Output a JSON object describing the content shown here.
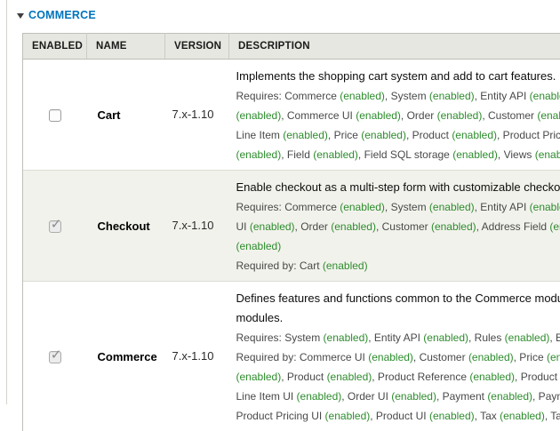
{
  "colors": {
    "section_title_blue": "#0074BD",
    "enabled_green": "#2d8c2d"
  },
  "section": {
    "title": "COMMERCE",
    "collapse_icon": "triangle-down-icon",
    "state": "expanded"
  },
  "table": {
    "headers": [
      "ENABLED",
      "NAME",
      "VERSION",
      "DESCRIPTION"
    ],
    "rows": [
      {
        "enabled": false,
        "checkbox_disabled": false,
        "name": "Cart",
        "version": "7.x-1.10",
        "description_lines": [
          {
            "style": "main",
            "text": "Implements the shopping cart system and add to cart features."
          },
          {
            "style": "requirements",
            "text": "Requires: Commerce (enabled), System (enabled), Entity API (enabled), Rules"
          },
          {
            "style": "requirements",
            "text": "(enabled), Commerce UI (enabled), Order (enabled), Customer (enabled),"
          },
          {
            "style": "requirements",
            "text": "Line Item (enabled), Price (enabled), Product (enabled), Product Pricing"
          },
          {
            "style": "requirements",
            "text": "(enabled), Field (enabled), Field SQL storage (enabled), Views (enabled)"
          }
        ]
      },
      {
        "enabled": true,
        "checkbox_disabled": true,
        "name": "Checkout",
        "version": "7.x-1.10",
        "description_lines": [
          {
            "style": "main",
            "text": "Enable checkout as a multi-step form with customizable checkout pages."
          },
          {
            "style": "requirements",
            "text": "Requires: Commerce (enabled), System (enabled), Entity API (enabled), Commerce"
          },
          {
            "style": "requirements",
            "text": "UI (enabled), Order (enabled), Customer (enabled), Address Field (enabled), Field"
          },
          {
            "style": "requirements",
            "text": "(enabled)"
          },
          {
            "style": "requirements",
            "text": "Required by: Cart (enabled)"
          }
        ]
      },
      {
        "enabled": true,
        "checkbox_disabled": true,
        "name": "Commerce",
        "version": "7.x-1.10",
        "description_lines": [
          {
            "style": "main",
            "text": "Defines features and functions common to the Commerce modules."
          },
          {
            "style": "main",
            "text": "modules."
          },
          {
            "style": "requirements",
            "text": "Requires: System (enabled), Entity API (enabled), Rules (enabled), Entity tokens"
          },
          {
            "style": "requirements",
            "text": "Required by: Commerce UI (enabled), Customer (enabled), Price (enabled), Cart"
          },
          {
            "style": "requirements",
            "text": "(enabled), Product (enabled), Product Reference (enabled), Product Pricing (enabled),"
          },
          {
            "style": "requirements",
            "text": "Line Item UI (enabled), Order UI (enabled), Payment (enabled), Payment UI (enabled),"
          },
          {
            "style": "requirements",
            "text": "Product Pricing UI (enabled), Product UI (enabled), Tax (enabled), Tax UI (enabled)"
          }
        ]
      }
    ]
  }
}
